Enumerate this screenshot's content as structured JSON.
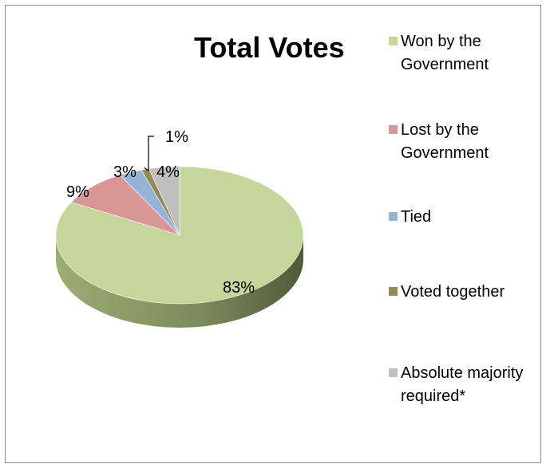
{
  "chart_data": {
    "type": "pie",
    "title": "Total Votes",
    "slices": [
      {
        "label": "Won by the Government",
        "value": 83,
        "display": "83%",
        "color": "#c4d79b"
      },
      {
        "label": "Lost by the Government",
        "value": 9,
        "display": "9%",
        "color": "#da9694"
      },
      {
        "label": "Tied",
        "value": 3,
        "display": "3%",
        "color": "#95b3d7"
      },
      {
        "label": "Voted together",
        "value": 1,
        "display": "1%",
        "color": "#948a54"
      },
      {
        "label": "Absolute majority required*",
        "value": 4,
        "display": "4%",
        "color": "#bfbfbf"
      }
    ],
    "legend_position": "right",
    "style": "3d-pie"
  }
}
